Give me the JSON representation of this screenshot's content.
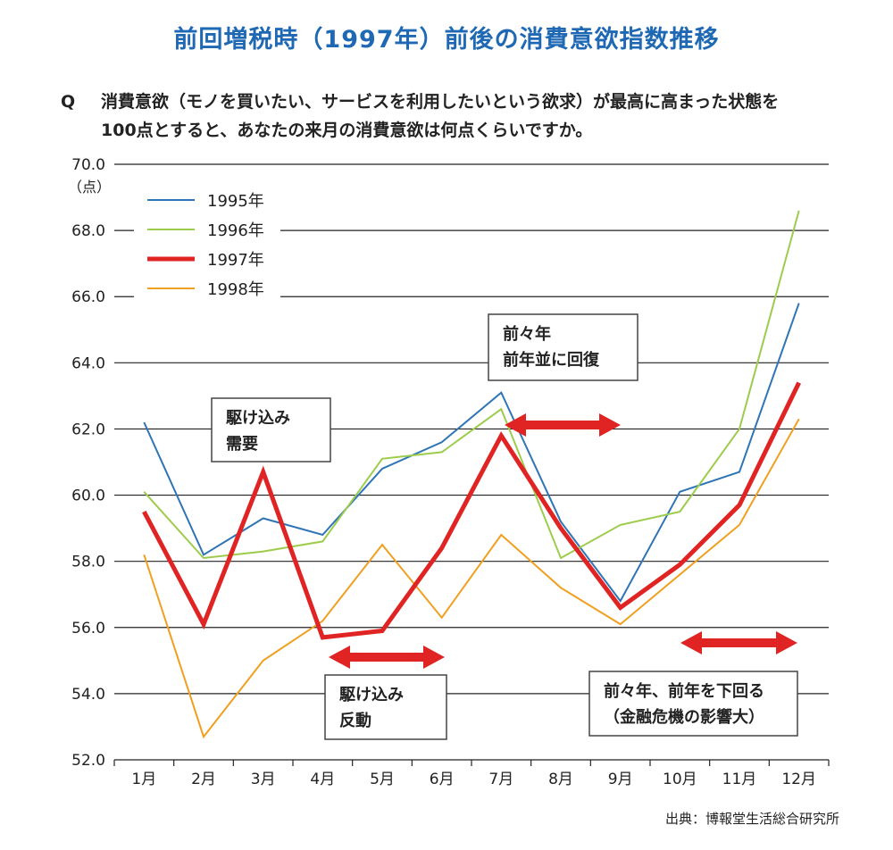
{
  "title": "前回増税時（1997年）前後の消費意欲指数推移",
  "question": {
    "prefix": "Q",
    "line1": "消費意欲（モノを買いたい、サービスを利用したいという欲求）が最高に高まった状態を",
    "line2": "100点とすると、あなたの来月の消費意欲は何点くらいですか。"
  },
  "source": "出典：博報堂生活総合研究所",
  "colors": {
    "title": "#1f68b3",
    "grid": "#222222",
    "series_1995": "#2f75b5",
    "series_1996": "#9dcc4c",
    "series_1997": "#e02424",
    "series_1998": "#f0a020",
    "arrow": "#e02424"
  },
  "chart_data": {
    "type": "line",
    "ylabel": "（点）",
    "ylim": [
      52.0,
      70.0
    ],
    "yticks": [
      "52.0",
      "54.0",
      "56.0",
      "58.0",
      "60.0",
      "62.0",
      "64.0",
      "66.0",
      "68.0",
      "70.0"
    ],
    "categories": [
      "1月",
      "2月",
      "3月",
      "4月",
      "5月",
      "6月",
      "7月",
      "8月",
      "9月",
      "10月",
      "11月",
      "12月"
    ],
    "grid": "horizontal",
    "legend_position": "top-left",
    "series": [
      {
        "name": "1995年",
        "color": "#2f75b5",
        "width": 2,
        "values": [
          62.2,
          58.2,
          59.3,
          58.8,
          60.8,
          61.6,
          63.1,
          59.2,
          56.8,
          60.1,
          60.7,
          65.8
        ]
      },
      {
        "name": "1996年",
        "color": "#9dcc4c",
        "width": 2,
        "values": [
          60.1,
          58.1,
          58.3,
          58.6,
          61.1,
          61.3,
          62.6,
          58.1,
          59.1,
          59.5,
          62.0,
          68.6
        ]
      },
      {
        "name": "1997年",
        "color": "#e02424",
        "width": 5,
        "values": [
          59.5,
          56.1,
          60.7,
          55.7,
          55.9,
          58.4,
          61.8,
          59.0,
          56.6,
          57.9,
          59.7,
          63.4
        ]
      },
      {
        "name": "1998年",
        "color": "#f0a020",
        "width": 2,
        "values": [
          58.2,
          52.7,
          55.0,
          56.2,
          58.5,
          56.3,
          58.8,
          57.2,
          56.1,
          57.6,
          59.1,
          62.3
        ]
      }
    ],
    "annotations": [
      {
        "lines": [
          "駆け込み",
          "需要"
        ]
      },
      {
        "lines": [
          "駆け込み",
          "反動"
        ]
      },
      {
        "lines": [
          "前々年",
          "前年並に回復"
        ]
      },
      {
        "lines": [
          "前々年、前年を下回る",
          "（金融危機の影響大）"
        ]
      }
    ]
  }
}
